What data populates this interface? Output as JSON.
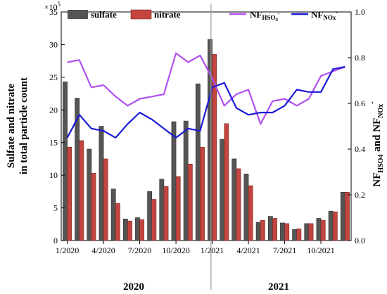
{
  "chart_data": {
    "type": "bar",
    "y_left_label_line1": "Sulfate and nitrate",
    "y_left_label_line2": "in total particle count",
    "y_left_exponent": "×10",
    "y_left_exponent_power": "5",
    "y_right_label_main": "NF",
    "y_right_label_sub1": "HSO4",
    "y_right_label_and": " and NF",
    "y_right_label_sub2": "NOx",
    "y_right_label_sup": "-",
    "ylim_left": [
      0,
      35
    ],
    "ylim_right": [
      0,
      1.0
    ],
    "yticks_left": [
      "0",
      "5",
      "10",
      "15",
      "20",
      "25",
      "30",
      "35"
    ],
    "yticks_right": [
      "0.0",
      "0.2",
      "0.4",
      "0.6",
      "0.8",
      "1.0"
    ],
    "xticks": [
      {
        "label": "1/2020",
        "month_index": 0
      },
      {
        "label": "4/2020",
        "month_index": 3
      },
      {
        "label": "7/2020",
        "month_index": 6
      },
      {
        "label": "10/2020",
        "month_index": 9
      },
      {
        "label": "1/2021",
        "month_index": 12
      },
      {
        "label": "4/2021",
        "month_index": 15
      },
      {
        "label": "7/2021",
        "month_index": 18
      },
      {
        "label": "10/2021",
        "month_index": 21
      }
    ],
    "year_labels": [
      {
        "label": "2020",
        "month_center": 5.5
      },
      {
        "label": "2021",
        "month_center": 17.5
      }
    ],
    "divider_month": 11.9,
    "n_months": 24,
    "colors": {
      "sulfate": "#555555",
      "nitrate": "#c4453f",
      "nf_hso4": "#b14ff0",
      "nf_nox": "#1a1ad6",
      "divider": "#9a9a9a"
    },
    "legend": {
      "sulfate": "sulfate",
      "nitrate": "nitrate",
      "nf_hso4_main": "NF",
      "nf_hso4_sub": "HSO",
      "nf_hso4_sub_num": "4",
      "nf_hso4_sup": "-",
      "nf_nox_main": "NF",
      "nf_nox_sub": "NOx",
      "nf_nox_sup": "-"
    },
    "series": [
      {
        "name": "sulfate",
        "axis": "left",
        "kind": "bar",
        "values": [
          24.3,
          21.8,
          14.0,
          17.5,
          7.9,
          3.3,
          3.5,
          7.5,
          9.4,
          18.2,
          18.3,
          24.0,
          30.8,
          15.5,
          12.5,
          10.2,
          2.8,
          3.7,
          2.7,
          1.7,
          2.6,
          3.4,
          4.5,
          7.4
        ]
      },
      {
        "name": "nitrate",
        "axis": "left",
        "kind": "bar",
        "values": [
          14.3,
          15.3,
          10.3,
          12.5,
          5.7,
          3.0,
          3.2,
          6.3,
          8.3,
          9.8,
          11.7,
          14.3,
          28.5,
          17.9,
          11.0,
          8.4,
          3.1,
          3.4,
          2.6,
          1.8,
          2.6,
          3.1,
          4.4,
          7.4
        ]
      },
      {
        "name": "NF_HSO4",
        "axis": "right",
        "kind": "line",
        "values": [
          0.78,
          0.79,
          0.67,
          0.68,
          0.63,
          0.59,
          0.62,
          0.63,
          0.64,
          0.82,
          0.78,
          0.81,
          0.71,
          0.59,
          0.64,
          0.66,
          0.51,
          0.61,
          0.62,
          0.59,
          0.62,
          0.72,
          0.74,
          0.76
        ]
      },
      {
        "name": "NF_NOx",
        "axis": "right",
        "kind": "line",
        "values": [
          0.45,
          0.55,
          0.49,
          0.48,
          0.45,
          0.51,
          0.56,
          0.53,
          0.49,
          0.45,
          0.49,
          0.48,
          0.67,
          0.69,
          0.58,
          0.55,
          0.56,
          0.56,
          0.59,
          0.66,
          0.65,
          0.65,
          0.75,
          0.76
        ]
      }
    ]
  }
}
